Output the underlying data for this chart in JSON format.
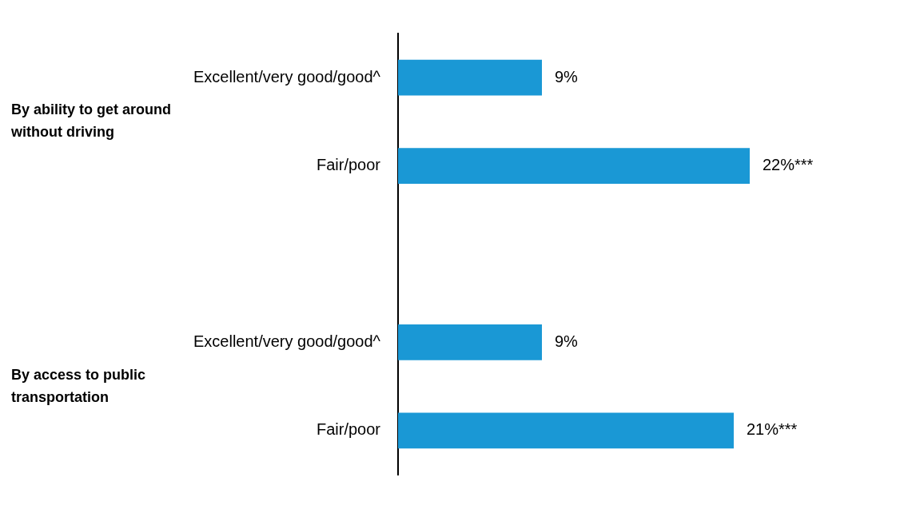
{
  "chart_data": {
    "type": "bar",
    "orientation": "horizontal",
    "categories": [
      "Excellent/very good/good^",
      "Fair/poor",
      null,
      "Excellent/very good/good^",
      "Fair/poor"
    ],
    "values": [
      9,
      22,
      null,
      9,
      21
    ],
    "color": "#1a98d5",
    "value_labels": [
      "9%",
      "22%***",
      null,
      "9%",
      "21%***"
    ],
    "annotations": [
      "By ability to get around without driving",
      "By access to public transportation"
    ],
    "grid": false,
    "legend": false
  }
}
